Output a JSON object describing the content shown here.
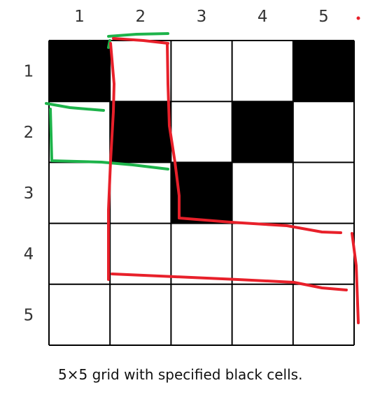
{
  "grid": {
    "rows": 5,
    "cols": 5,
    "column_labels": [
      "1",
      "2",
      "3",
      "4",
      "5"
    ],
    "row_labels": [
      "1",
      "2",
      "3",
      "4",
      "5"
    ],
    "black_cells": [
      {
        "row": 1,
        "col": 1
      },
      {
        "row": 1,
        "col": 5
      },
      {
        "row": 2,
        "col": 2
      },
      {
        "row": 2,
        "col": 4
      },
      {
        "row": 3,
        "col": 3
      }
    ]
  },
  "annotations": {
    "green_color": "#1db34a",
    "red_color": "#e8202a"
  },
  "caption": "5×5 grid with specified black cells."
}
